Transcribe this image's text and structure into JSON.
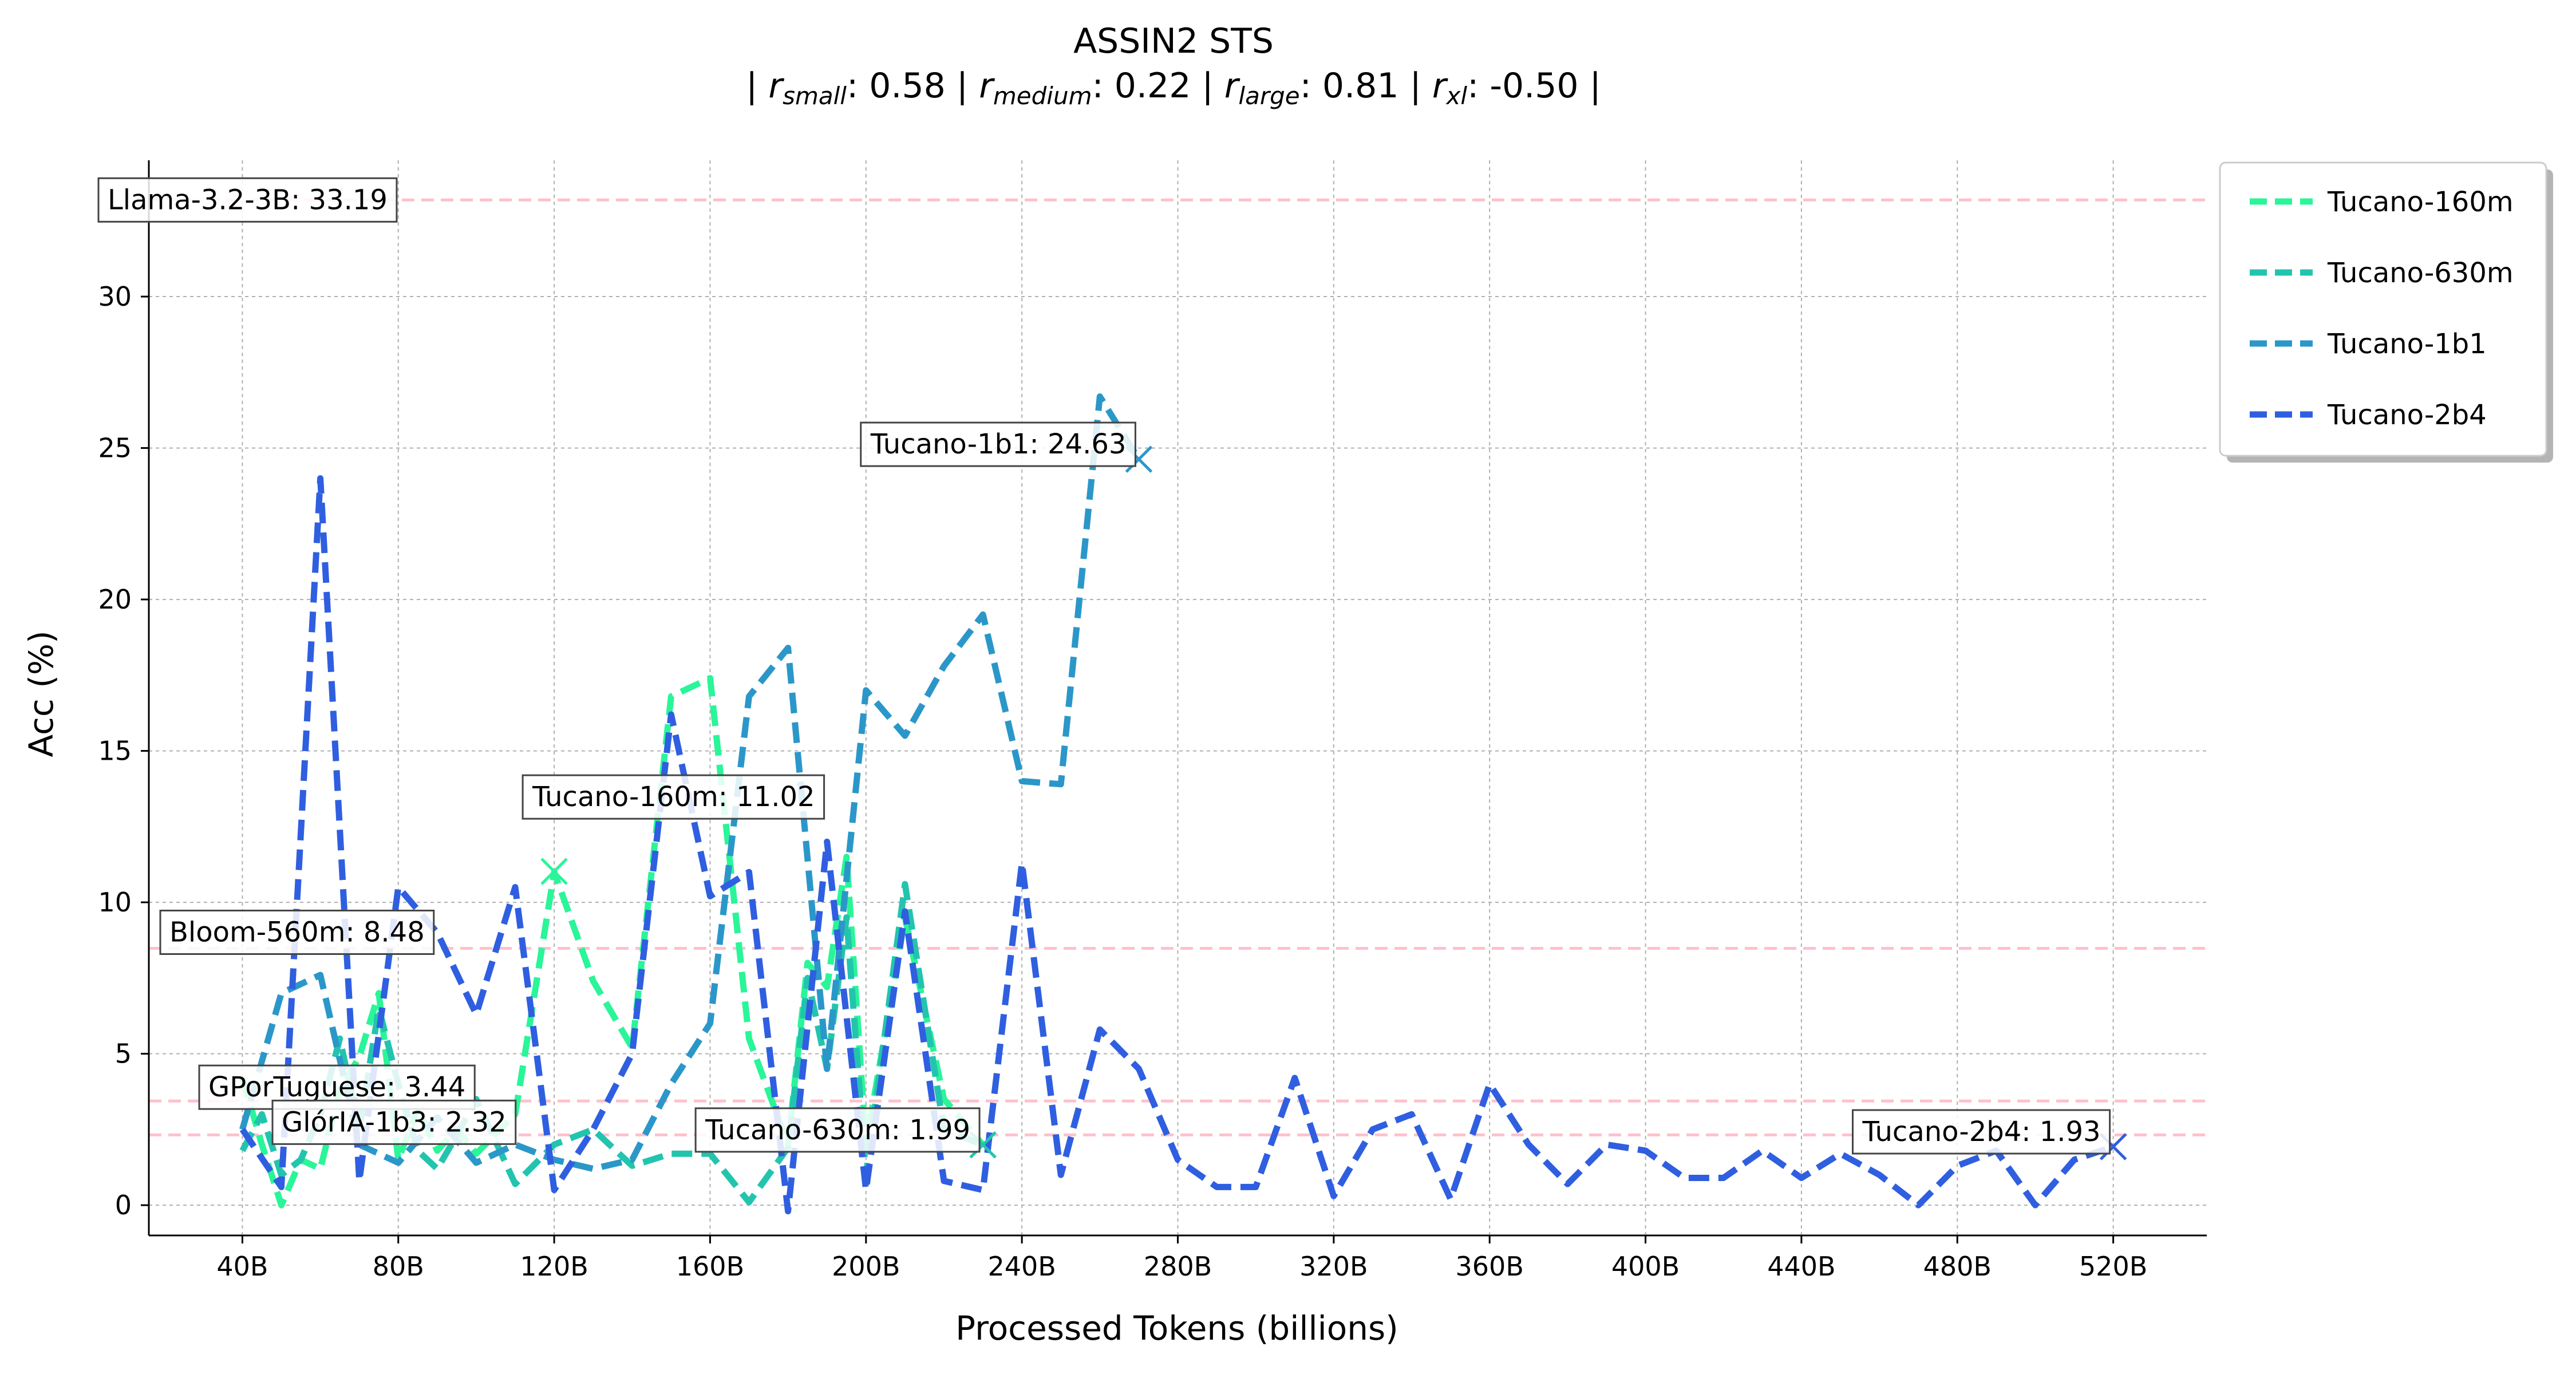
{
  "chart_data": {
    "type": "line",
    "title": "ASSIN2 STS",
    "subtitle_parts": [
      {
        "sub": "small",
        "value": "0.58"
      },
      {
        "sub": "medium",
        "value": "0.22"
      },
      {
        "sub": "large",
        "value": "0.81"
      },
      {
        "sub": "xl",
        "value": "-0.50"
      }
    ],
    "xlabel": "Processed Tokens (billions)",
    "ylabel": "Acc (%)",
    "xlim": [
      16,
      544
    ],
    "ylim": [
      -1,
      34.5
    ],
    "xticks": [
      40,
      80,
      120,
      160,
      200,
      240,
      280,
      320,
      360,
      400,
      440,
      480,
      520
    ],
    "xtick_labels": [
      "40B",
      "80B",
      "120B",
      "160B",
      "200B",
      "240B",
      "280B",
      "320B",
      "360B",
      "400B",
      "440B",
      "480B",
      "520B"
    ],
    "yticks": [
      0,
      5,
      10,
      15,
      20,
      25,
      30
    ],
    "ytick_labels": [
      "0",
      "5",
      "10",
      "15",
      "20",
      "25",
      "30"
    ],
    "grid": true,
    "legend_position": "upper right, outside the plot",
    "series": [
      {
        "name": "Tucano-160m",
        "color": "#2af598",
        "x": [
          40,
          45,
          50,
          55,
          60,
          65,
          70,
          75,
          80,
          85,
          90,
          95,
          100,
          110,
          120,
          130,
          140,
          150,
          160,
          170,
          180,
          185,
          190,
          195,
          200,
          210,
          220,
          230
        ],
        "y": [
          4.2,
          2.0,
          0.0,
          1.5,
          1.2,
          3.8,
          4.9,
          7.0,
          1.5,
          3.2,
          1.8,
          2.5,
          1.7,
          3.0,
          11.0,
          7.4,
          5.2,
          16.8,
          17.4,
          5.5,
          2.0,
          8.0,
          7.2,
          11.5,
          2.0,
          9.5,
          3.5,
          1.99
        ]
      },
      {
        "name": "Tucano-630m",
        "color": "#23c4ae",
        "x": [
          40,
          45,
          50,
          55,
          60,
          65,
          70,
          75,
          80,
          85,
          90,
          95,
          100,
          110,
          120,
          130,
          140,
          150,
          160,
          170,
          180,
          185,
          190,
          195,
          200,
          210,
          220,
          230
        ],
        "y": [
          1.8,
          3.0,
          1.0,
          1.5,
          3.0,
          5.5,
          2.5,
          6.5,
          4.0,
          1.8,
          1.2,
          2.3,
          3.5,
          0.7,
          2.0,
          2.5,
          1.3,
          1.7,
          1.7,
          0.1,
          1.9,
          7.5,
          4.5,
          9.5,
          1.0,
          10.6,
          2.5,
          1.99
        ]
      },
      {
        "name": "Tucano-1b1",
        "color": "#2b97c9",
        "x": [
          40,
          50,
          60,
          70,
          80,
          90,
          100,
          110,
          120,
          130,
          140,
          150,
          160,
          170,
          180,
          190,
          200,
          210,
          220,
          230,
          240,
          250,
          260,
          270
        ],
        "y": [
          2.5,
          7.0,
          7.6,
          2.0,
          1.4,
          2.9,
          1.4,
          2.0,
          1.5,
          1.2,
          1.5,
          4.0,
          6.0,
          16.8,
          18.4,
          4.5,
          17.0,
          15.5,
          17.8,
          19.5,
          14.0,
          13.9,
          26.7,
          24.63
        ]
      },
      {
        "name": "Tucano-2b4",
        "color": "#2f5fe0",
        "x": [
          40,
          50,
          60,
          70,
          80,
          90,
          100,
          110,
          120,
          130,
          140,
          150,
          160,
          170,
          180,
          190,
          200,
          210,
          220,
          230,
          240,
          250,
          260,
          270,
          280,
          290,
          300,
          310,
          320,
          330,
          340,
          350,
          360,
          370,
          380,
          390,
          400,
          410,
          420,
          430,
          440,
          450,
          460,
          470,
          480,
          490,
          500,
          510,
          520
        ],
        "y": [
          2.5,
          0.6,
          24.0,
          0.8,
          10.5,
          9.0,
          6.3,
          10.5,
          0.5,
          2.5,
          5.0,
          16.2,
          10.2,
          11.0,
          -0.2,
          12.0,
          0.5,
          9.7,
          0.8,
          0.5,
          11.3,
          1.0,
          5.8,
          4.5,
          1.5,
          0.6,
          0.6,
          4.2,
          0.3,
          2.5,
          3.0,
          0.2,
          4.0,
          2.0,
          0.7,
          2.0,
          1.8,
          0.9,
          0.9,
          1.8,
          0.9,
          1.7,
          1.0,
          0.0,
          1.3,
          1.8,
          0.0,
          1.5,
          1.93
        ]
      }
    ],
    "reference_lines": [
      {
        "label": "Llama-3.2-3B: 33.19",
        "value": 33.19,
        "color": "#ffc0cb"
      },
      {
        "label": "Bloom-560m: 8.48",
        "value": 8.48,
        "color": "#ffc0cb"
      },
      {
        "label": "GPorTuguese: 3.44",
        "value": 3.44,
        "color": "#ffc0cb"
      },
      {
        "label": "GlórIA-1b3: 2.32",
        "value": 2.32,
        "color": "#ffc0cb"
      }
    ],
    "endpoint_annotations": [
      {
        "series": "Tucano-1b1",
        "label": "Tucano-1b1: 24.63",
        "x": 270,
        "y": 24.63
      },
      {
        "series": "Tucano-160m",
        "label": "Tucano-160m: 11.02",
        "x": 120,
        "y": 11.02
      },
      {
        "series": "Tucano-630m",
        "label": "Tucano-630m: 1.99",
        "x": 230,
        "y": 1.99
      },
      {
        "series": "Tucano-2b4",
        "label": "Tucano-2b4: 1.93",
        "x": 520,
        "y": 1.93
      }
    ]
  }
}
